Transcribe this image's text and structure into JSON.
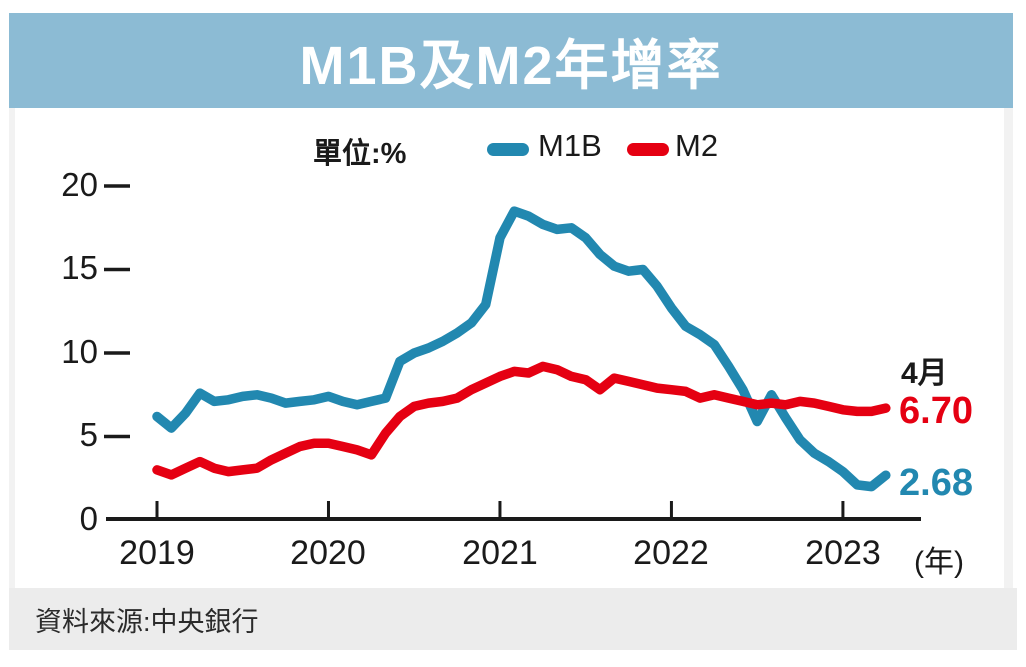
{
  "header": {
    "title": "M1B及M2年增率",
    "bg_color": "#8CBBD4"
  },
  "legend": {
    "unit_label": "單位:%",
    "items": [
      {
        "label": "M1B",
        "color": "#2288B0"
      },
      {
        "label": "M2",
        "color": "#E50012"
      }
    ]
  },
  "annotations": {
    "period_label": "4月",
    "values": [
      {
        "series": "M2",
        "text": "6.70",
        "color": "#E50012"
      },
      {
        "series": "M1B",
        "text": "2.68",
        "color": "#2288B0"
      }
    ]
  },
  "axes": {
    "y_ticks": [
      "0",
      "5",
      "10",
      "15",
      "20"
    ],
    "x_ticks": [
      "2019",
      "2020",
      "2021",
      "2022",
      "2023"
    ],
    "x_suffix": "(年)",
    "axis_color": "#1a1a1a"
  },
  "footer": {
    "source": "資料來源:中央銀行"
  },
  "chart_data": {
    "type": "line",
    "title": "M1B及M2年增率",
    "ylabel": "%",
    "ylim": [
      0,
      20
    ],
    "grid": false,
    "legend_position": "top",
    "x": [
      "2019-01",
      "2019-02",
      "2019-03",
      "2019-04",
      "2019-05",
      "2019-06",
      "2019-07",
      "2019-08",
      "2019-09",
      "2019-10",
      "2019-11",
      "2019-12",
      "2020-01",
      "2020-02",
      "2020-03",
      "2020-04",
      "2020-05",
      "2020-06",
      "2020-07",
      "2020-08",
      "2020-09",
      "2020-10",
      "2020-11",
      "2020-12",
      "2021-01",
      "2021-02",
      "2021-03",
      "2021-04",
      "2021-05",
      "2021-06",
      "2021-07",
      "2021-08",
      "2021-09",
      "2021-10",
      "2021-11",
      "2021-12",
      "2022-01",
      "2022-02",
      "2022-03",
      "2022-04",
      "2022-05",
      "2022-06",
      "2022-07",
      "2022-08",
      "2022-09",
      "2022-10",
      "2022-11",
      "2022-12",
      "2023-01",
      "2023-02",
      "2023-03",
      "2023-04"
    ],
    "x_axis_year_ticks": [
      "2019",
      "2020",
      "2021",
      "2022",
      "2023"
    ],
    "series": [
      {
        "name": "M1B",
        "color": "#2288B0",
        "values": [
          6.2,
          5.5,
          6.4,
          7.6,
          7.1,
          7.2,
          7.4,
          7.5,
          7.3,
          7.0,
          7.1,
          7.2,
          7.4,
          7.1,
          6.9,
          7.1,
          7.3,
          9.5,
          10.0,
          10.3,
          10.7,
          11.2,
          11.8,
          12.9,
          16.9,
          18.5,
          18.2,
          17.7,
          17.4,
          17.5,
          16.9,
          15.9,
          15.2,
          14.9,
          15.0,
          14.0,
          12.7,
          11.6,
          11.1,
          10.5,
          9.2,
          7.8,
          5.9,
          7.5,
          6.1,
          4.8,
          4.0,
          3.5,
          2.9,
          2.1,
          2.0,
          2.68
        ]
      },
      {
        "name": "M2",
        "color": "#E50012",
        "values": [
          3.0,
          2.7,
          3.1,
          3.5,
          3.1,
          2.9,
          3.0,
          3.1,
          3.6,
          4.0,
          4.4,
          4.6,
          4.6,
          4.4,
          4.2,
          3.9,
          5.2,
          6.2,
          6.8,
          7.0,
          7.1,
          7.3,
          7.8,
          8.2,
          8.6,
          8.9,
          8.8,
          9.2,
          9.0,
          8.6,
          8.4,
          7.8,
          8.5,
          8.3,
          8.1,
          7.9,
          7.8,
          7.7,
          7.3,
          7.5,
          7.3,
          7.1,
          6.9,
          7.0,
          6.9,
          7.1,
          7.0,
          6.8,
          6.6,
          6.5,
          6.5,
          6.7
        ]
      }
    ],
    "end_labels": {
      "period": "4月",
      "M2": "6.70",
      "M1B": "2.68"
    }
  }
}
